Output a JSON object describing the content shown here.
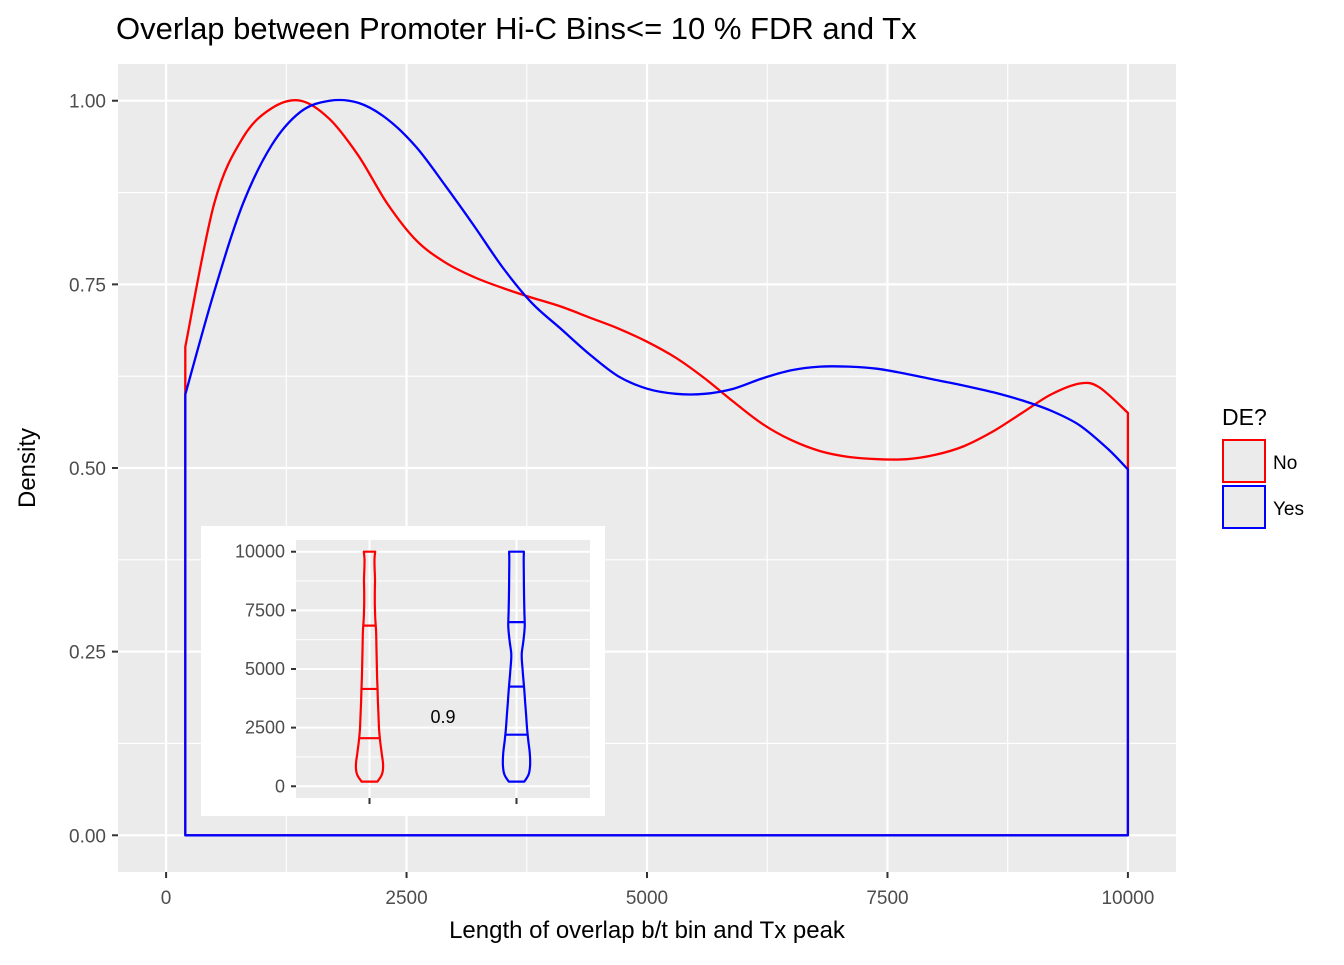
{
  "chart_data": [
    {
      "type": "line",
      "title": "Overlap between Promoter Hi-C Bins<= 10 % FDR and Tx",
      "xlabel": "Length of overlap b/t bin and Tx peak",
      "ylabel": "Density",
      "xlim": [
        -500,
        10500
      ],
      "ylim": [
        -0.05,
        1.05
      ],
      "x_ticks": [
        0,
        2500,
        5000,
        7500,
        10000
      ],
      "x_tick_labels": [
        "0",
        "2500",
        "5000",
        "7500",
        "10000"
      ],
      "y_ticks": [
        0,
        0.25,
        0.5,
        0.75,
        1.0
      ],
      "y_tick_labels": [
        "0.00",
        "0.25",
        "0.50",
        "0.75",
        "1.00"
      ],
      "grid": true,
      "legend": {
        "title": "DE?",
        "position": "right"
      },
      "series": [
        {
          "name": "No",
          "color": "#ff0000",
          "x": [
            200,
            500,
            800,
            1100,
            1400,
            1700,
            2000,
            2300,
            2600,
            2900,
            3200,
            3500,
            3800,
            4100,
            4400,
            4700,
            5000,
            5300,
            5600,
            5900,
            6200,
            6500,
            6800,
            7100,
            7400,
            7700,
            8000,
            8300,
            8600,
            8900,
            9200,
            9500,
            9700,
            10000
          ],
          "y": [
            0.665,
            0.86,
            0.95,
            0.99,
            1.0,
            0.975,
            0.925,
            0.86,
            0.81,
            0.78,
            0.76,
            0.745,
            0.732,
            0.72,
            0.705,
            0.69,
            0.672,
            0.65,
            0.622,
            0.59,
            0.56,
            0.538,
            0.523,
            0.515,
            0.512,
            0.512,
            0.518,
            0.53,
            0.55,
            0.575,
            0.6,
            0.615,
            0.61,
            0.575
          ]
        },
        {
          "name": "Yes",
          "color": "#0000ff",
          "x": [
            200,
            500,
            800,
            1100,
            1400,
            1700,
            2000,
            2300,
            2600,
            2900,
            3200,
            3500,
            3800,
            4100,
            4400,
            4700,
            5000,
            5300,
            5600,
            5900,
            6200,
            6500,
            6800,
            7100,
            7400,
            7700,
            8000,
            8300,
            8600,
            8900,
            9200,
            9500,
            9800,
            10000
          ],
          "y": [
            0.6,
            0.74,
            0.86,
            0.94,
            0.985,
            1.0,
            0.997,
            0.975,
            0.937,
            0.885,
            0.83,
            0.773,
            0.725,
            0.69,
            0.655,
            0.625,
            0.608,
            0.601,
            0.601,
            0.608,
            0.622,
            0.633,
            0.638,
            0.638,
            0.635,
            0.628,
            0.62,
            0.612,
            0.603,
            0.592,
            0.578,
            0.558,
            0.525,
            0.498
          ]
        }
      ]
    },
    {
      "type": "violin",
      "ylim": [
        -500,
        10500
      ],
      "y_ticks": [
        0,
        2500,
        5000,
        7500,
        10000
      ],
      "y_tick_labels": [
        "0",
        "2500",
        "5000",
        "7500",
        "10000"
      ],
      "annotation": "0.9",
      "series": [
        {
          "name": "No",
          "color": "#ff0000",
          "quantiles": [
            2050,
            4150,
            6850
          ],
          "profile_y": [
            200,
            500,
            900,
            1400,
            1900,
            2400,
            3000,
            3600,
            4200,
            4800,
            5400,
            6000,
            6600,
            7200,
            7800,
            8300,
            8800,
            9300,
            9700,
            10000
          ],
          "profile_halfwidth": [
            510,
            800,
            880,
            790,
            690,
            620,
            580,
            545,
            515,
            485,
            465,
            445,
            425,
            370,
            345,
            345,
            355,
            330,
            320,
            370
          ]
        },
        {
          "name": "Yes",
          "color": "#0000ff",
          "quantiles": [
            2200,
            4250,
            7000
          ],
          "profile_y": [
            200,
            500,
            900,
            1400,
            1900,
            2400,
            3000,
            3600,
            4200,
            4800,
            5400,
            5700,
            6200,
            6800,
            7400,
            8000,
            8600,
            9200,
            9700,
            10000
          ],
          "profile_halfwidth": [
            500,
            780,
            880,
            860,
            770,
            690,
            625,
            555,
            490,
            415,
            345,
            345,
            445,
            530,
            510,
            490,
            480,
            470,
            465,
            480
          ]
        }
      ]
    }
  ]
}
